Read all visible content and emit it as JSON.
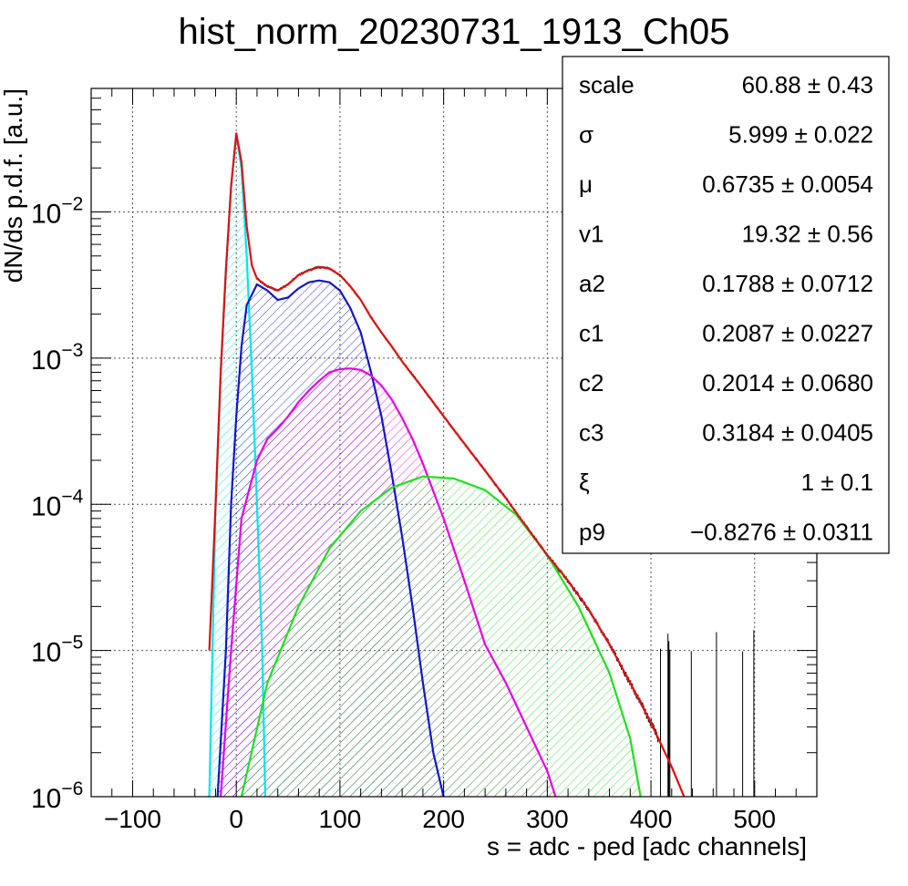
{
  "chart_data": {
    "type": "histogram_with_fit",
    "title": "hist_norm_20230731_1913_Ch05",
    "xlabel": "s = adc - ped [adc channels]",
    "ylabel": "dN/ds p.d.f. [a.u.]",
    "xlim": [
      -140,
      560
    ],
    "ylim": [
      1e-06,
      0.07
    ],
    "yscale": "log",
    "grid": true,
    "x_ticks": [
      -100,
      0,
      100,
      200,
      300,
      400,
      500
    ],
    "x_tick_labels": [
      "−100",
      "0",
      "100",
      "200",
      "300",
      "400",
      "500"
    ],
    "y_ticks": [
      {
        "value": 1e-06,
        "base": "10",
        "exp": "−6"
      },
      {
        "value": 1e-05,
        "base": "10",
        "exp": "−5"
      },
      {
        "value": 0.0001,
        "base": "10",
        "exp": "−4"
      },
      {
        "value": 0.001,
        "base": "10",
        "exp": "−3"
      },
      {
        "value": 0.01,
        "base": "10",
        "exp": "−2"
      }
    ],
    "series": [
      {
        "color": "#00e5ee",
        "hatch": true,
        "points": [
          [
            -26,
            1e-06
          ],
          [
            -20,
            0.0001
          ],
          [
            -15,
            0.0008
          ],
          [
            -10,
            0.004
          ],
          [
            -5,
            0.015
          ],
          [
            0,
            0.034
          ],
          [
            5,
            0.02
          ],
          [
            10,
            0.005
          ],
          [
            15,
            0.0008
          ],
          [
            20,
            0.0001
          ],
          [
            25,
            1e-05
          ],
          [
            28,
            1e-06
          ]
        ]
      },
      {
        "color": "#1515c8",
        "hatch": true,
        "points": [
          [
            -18,
            1e-06
          ],
          [
            -10,
            1e-05
          ],
          [
            -5,
            0.0001
          ],
          [
            0,
            0.0004
          ],
          [
            5,
            0.0012
          ],
          [
            10,
            0.0023
          ],
          [
            20,
            0.0032
          ],
          [
            30,
            0.0029
          ],
          [
            40,
            0.0025
          ],
          [
            50,
            0.0026
          ],
          [
            60,
            0.003
          ],
          [
            70,
            0.0033
          ],
          [
            80,
            0.0034
          ],
          [
            90,
            0.0033
          ],
          [
            100,
            0.0029
          ],
          [
            110,
            0.0022
          ],
          [
            120,
            0.0015
          ],
          [
            130,
            0.0008
          ],
          [
            140,
            0.0004
          ],
          [
            150,
            0.00016
          ],
          [
            160,
            6e-05
          ],
          [
            170,
            2e-05
          ],
          [
            180,
            6e-06
          ],
          [
            190,
            2e-06
          ],
          [
            200,
            1e-06
          ]
        ]
      },
      {
        "color": "#e600e6",
        "hatch": true,
        "points": [
          [
            -15,
            1e-06
          ],
          [
            -5,
            1e-05
          ],
          [
            5,
            8e-05
          ],
          [
            20,
            0.0002
          ],
          [
            30,
            0.00028
          ],
          [
            40,
            0.00033
          ],
          [
            50,
            0.0004
          ],
          [
            60,
            0.0005
          ],
          [
            70,
            0.0006
          ],
          [
            80,
            0.0007
          ],
          [
            90,
            0.0008
          ],
          [
            100,
            0.00084
          ],
          [
            110,
            0.00085
          ],
          [
            120,
            0.00083
          ],
          [
            130,
            0.00076
          ],
          [
            140,
            0.00065
          ],
          [
            150,
            0.00052
          ],
          [
            160,
            0.00039
          ],
          [
            170,
            0.00028
          ],
          [
            180,
            0.00019
          ],
          [
            200,
            8e-05
          ],
          [
            220,
            3e-05
          ],
          [
            240,
            1.1e-05
          ],
          [
            260,
            6e-06
          ],
          [
            280,
            3e-06
          ],
          [
            300,
            1.5e-06
          ],
          [
            308,
            1e-06
          ]
        ]
      },
      {
        "color": "#22dd22",
        "hatch": true,
        "points": [
          [
            5,
            1e-06
          ],
          [
            30,
            6e-06
          ],
          [
            60,
            2e-05
          ],
          [
            90,
            5e-05
          ],
          [
            120,
            9e-05
          ],
          [
            150,
            0.00013
          ],
          [
            180,
            0.000155
          ],
          [
            210,
            0.00015
          ],
          [
            240,
            0.000125
          ],
          [
            270,
            8.5e-05
          ],
          [
            300,
            4.5e-05
          ],
          [
            330,
            2e-05
          ],
          [
            360,
            7e-06
          ],
          [
            380,
            2.5e-06
          ],
          [
            390,
            1e-06
          ]
        ]
      },
      {
        "color": "#dd1111",
        "hatch": false,
        "points": [
          [
            -26,
            1e-05
          ],
          [
            -20,
            0.0001
          ],
          [
            -15,
            0.0008
          ],
          [
            -10,
            0.004
          ],
          [
            -5,
            0.015
          ],
          [
            0,
            0.0345
          ],
          [
            5,
            0.022
          ],
          [
            10,
            0.008
          ],
          [
            15,
            0.0043
          ],
          [
            20,
            0.0035
          ],
          [
            30,
            0.0031
          ],
          [
            40,
            0.0029
          ],
          [
            50,
            0.0032
          ],
          [
            60,
            0.0037
          ],
          [
            70,
            0.004
          ],
          [
            80,
            0.0042
          ],
          [
            90,
            0.0041
          ],
          [
            100,
            0.0037
          ],
          [
            110,
            0.0031
          ],
          [
            120,
            0.0025
          ],
          [
            130,
            0.0019
          ],
          [
            140,
            0.0015
          ],
          [
            150,
            0.0012
          ],
          [
            160,
            0.00095
          ],
          [
            180,
            0.00062
          ],
          [
            200,
            0.0004
          ],
          [
            220,
            0.00026
          ],
          [
            240,
            0.00017
          ],
          [
            260,
            0.00011
          ],
          [
            280,
            7e-05
          ],
          [
            300,
            4.5e-05
          ],
          [
            320,
            3e-05
          ],
          [
            340,
            1.9e-05
          ],
          [
            360,
            1.1e-05
          ],
          [
            380,
            6e-06
          ],
          [
            400,
            3.2e-06
          ],
          [
            420,
            1.6e-06
          ],
          [
            432,
            1e-06
          ]
        ]
      }
    ],
    "stats_box": [
      {
        "label": "scale",
        "value": "60.88 ± 0.43"
      },
      {
        "label": "σ",
        "value": "5.999 ± 0.022"
      },
      {
        "label": "μ",
        "value": "0.6735 ± 0.0054"
      },
      {
        "label": "v1",
        "value": "19.32 ± 0.56"
      },
      {
        "label": "a2",
        "value": "0.1788 ± 0.0712"
      },
      {
        "label": "c1",
        "value": "0.2087 ± 0.0227"
      },
      {
        "label": "c2",
        "value": "0.2014 ± 0.0680"
      },
      {
        "label": "c3",
        "value": "0.3184 ± 0.0405"
      },
      {
        "label": "ξ",
        "value": "1 ± 0.1"
      },
      {
        "label": "p9",
        "value": "−0.8276 ± 0.0311"
      }
    ],
    "histogram_color": "#000000"
  }
}
